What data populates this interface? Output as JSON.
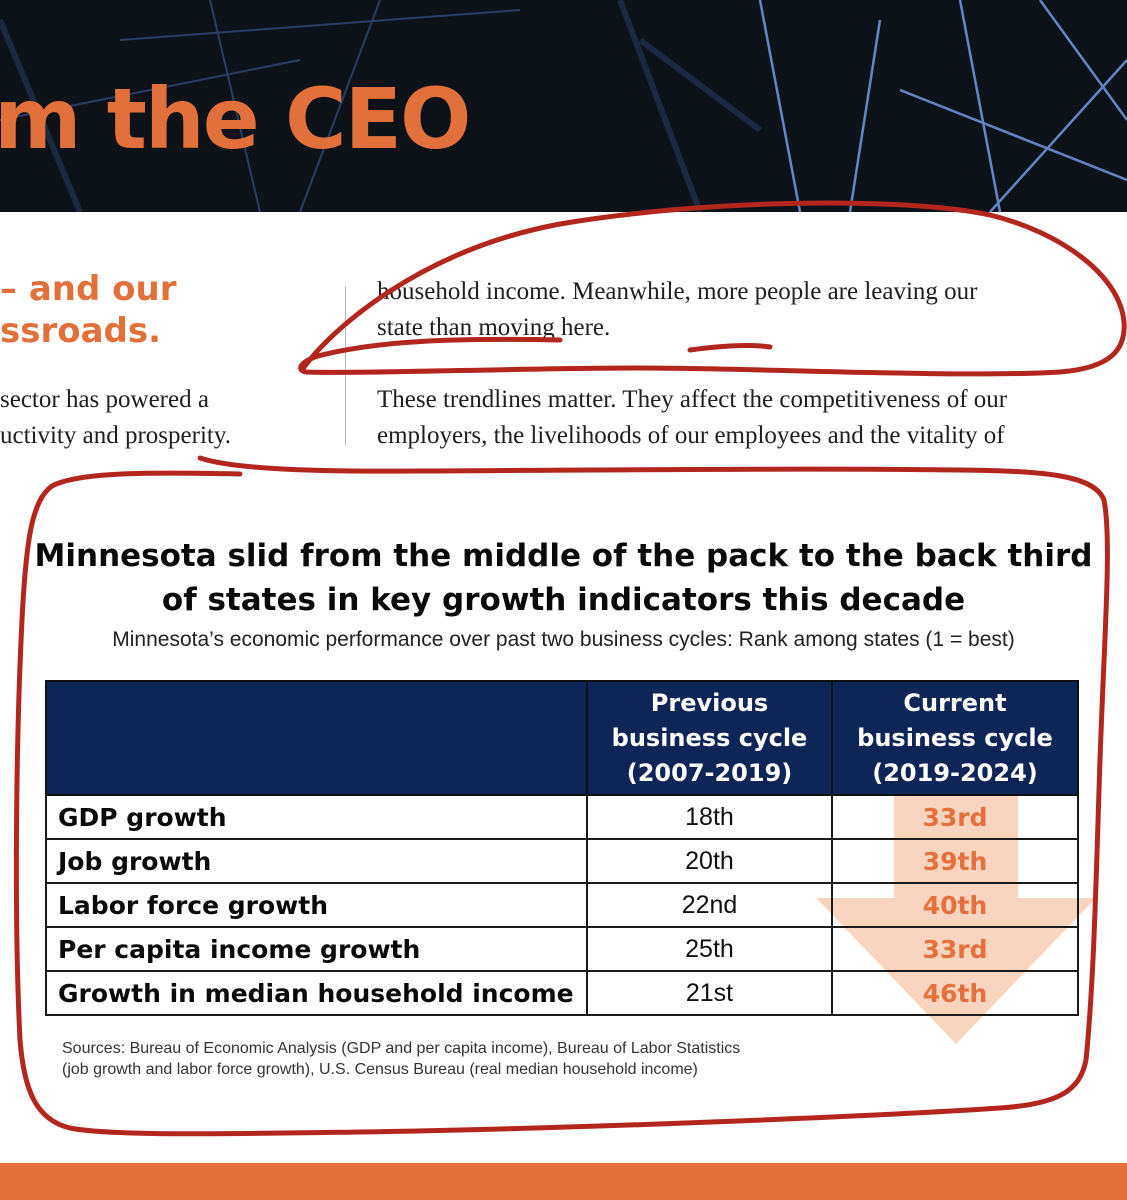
{
  "banner": {
    "title": "m the CEO"
  },
  "article": {
    "headline_line1": "– and our",
    "headline_line2": "ssroads.",
    "left_line1": "sector has powered a",
    "left_line2": "uctivity and prosperity.",
    "right_para1_line1": "household income. Meanwhile, more people are leaving our",
    "right_para1_line2": "state than moving here.",
    "right_para2_line1": "These trendlines matter. They affect the competitiveness of our",
    "right_para2_line2": "employers, the livelihoods of our employees and the vitality of"
  },
  "chart_data": {
    "type": "table",
    "title_line1": "Minnesota slid from the middle of the pack to the back third",
    "title_line2": "of states in key growth indicators this decade",
    "subtitle": "Minnesota’s economic performance over past two business cycles: Rank among states (1 = best)",
    "columns": [
      {
        "line1": "Previous",
        "line2": "business cycle",
        "line3": "(2007-2019)"
      },
      {
        "line1": "Current",
        "line2": "business cycle",
        "line3": "(2019-2024)"
      }
    ],
    "rows": [
      {
        "metric": "GDP growth",
        "previous": "18th",
        "current": "33rd"
      },
      {
        "metric": "Job growth",
        "previous": "20th",
        "current": "39th"
      },
      {
        "metric": "Labor force growth",
        "previous": "22nd",
        "current": "40th"
      },
      {
        "metric": "Per capita income growth",
        "previous": "25th",
        "current": "33rd"
      },
      {
        "metric": "Growth in median household income",
        "previous": "21st",
        "current": "46th"
      }
    ],
    "sources_line1": "Sources: Bureau of Economic Analysis (GDP and per capita income), Bureau of Labor Statistics",
    "sources_line2": "(job growth and labor force growth), U.S. Census Bureau (real median household income)"
  },
  "colors": {
    "accent_orange": "#e2703a",
    "table_header_navy": "#0e2557",
    "annotation_red": "#b3261e",
    "arrow_peach": "#f7c7aa"
  }
}
